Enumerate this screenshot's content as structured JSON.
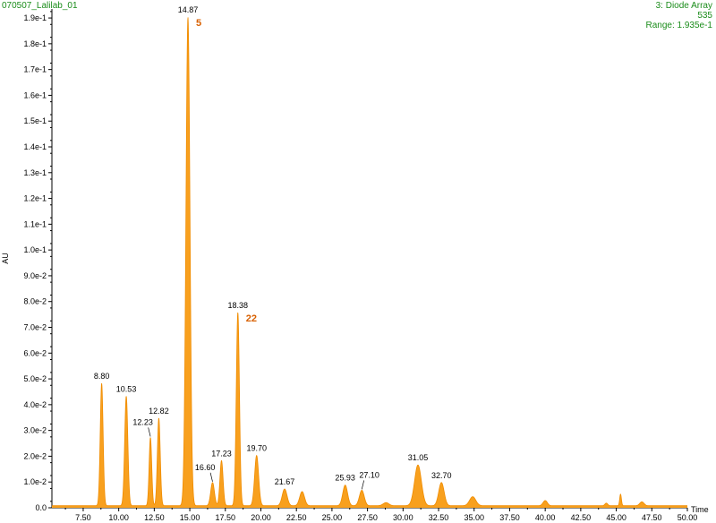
{
  "header": {
    "sample_name": "070507_Lalilab_01",
    "detector": "3: Diode Array",
    "wavelength": "535",
    "range": "Range: 1.935e-1"
  },
  "colors": {
    "trace": "#f8a01e",
    "trace_stroke": "#f08c00",
    "header_text": "#1a8c1a",
    "marker_label": "#d86000",
    "axis": "#000000"
  },
  "chart_data": {
    "type": "area",
    "xlabel": "Time",
    "ylabel": "AU",
    "xlim": [
      5.3,
      50.0
    ],
    "ylim": [
      0.0,
      0.1935
    ],
    "x_ticks": [
      7.5,
      10.0,
      12.5,
      15.0,
      17.5,
      20.0,
      22.5,
      25.0,
      27.5,
      30.0,
      32.5,
      35.0,
      37.5,
      40.0,
      42.5,
      45.0,
      47.5,
      50.0
    ],
    "x_tick_labels": [
      "7.50",
      "10.00",
      "12.50",
      "15.00",
      "17.50",
      "20.00",
      "22.50",
      "25.00",
      "27.50",
      "30.00",
      "32.50",
      "35.00",
      "37.50",
      "40.00",
      "42.50",
      "45.00",
      "47.50",
      "50.00"
    ],
    "y_ticks": [
      0.0,
      0.01,
      0.02,
      0.03,
      0.04,
      0.05,
      0.06,
      0.07,
      0.08,
      0.09,
      0.1,
      0.11,
      0.12,
      0.13,
      0.14,
      0.15,
      0.16,
      0.17,
      0.18,
      0.19
    ],
    "y_tick_labels": [
      "0.0",
      "1.0e-2",
      "2.0e-2",
      "3.0e-2",
      "4.0e-2",
      "5.0e-2",
      "6.0e-2",
      "7.0e-2",
      "8.0e-2",
      "9.0e-2",
      "1.0e-1",
      "1.1e-1",
      "1.2e-1",
      "1.3e-1",
      "1.4e-1",
      "1.5e-1",
      "1.6e-1",
      "1.7e-1",
      "1.8e-1",
      "1.9e-1"
    ],
    "baseline": 0.0008,
    "peaks": [
      {
        "rt": 8.8,
        "height": 0.0475,
        "width": 0.1,
        "label": "8.80"
      },
      {
        "rt": 10.53,
        "height": 0.0425,
        "width": 0.11,
        "label": "10.53"
      },
      {
        "rt": 12.23,
        "height": 0.0265,
        "width": 0.09,
        "label": "12.23"
      },
      {
        "rt": 12.82,
        "height": 0.034,
        "width": 0.1,
        "label": "12.82"
      },
      {
        "rt": 14.87,
        "height": 0.1895,
        "width": 0.14,
        "label": "14.87"
      },
      {
        "rt": 16.6,
        "height": 0.009,
        "width": 0.13,
        "label": "16.60"
      },
      {
        "rt": 17.23,
        "height": 0.0175,
        "width": 0.11,
        "label": "17.23"
      },
      {
        "rt": 18.38,
        "height": 0.075,
        "width": 0.11,
        "label": "18.38"
      },
      {
        "rt": 19.7,
        "height": 0.0195,
        "width": 0.14,
        "label": "19.70"
      },
      {
        "rt": 21.67,
        "height": 0.0065,
        "width": 0.17,
        "label": "21.67"
      },
      {
        "rt": 22.9,
        "height": 0.0055,
        "width": 0.17,
        "label": ""
      },
      {
        "rt": 25.93,
        "height": 0.008,
        "width": 0.17,
        "label": "25.93"
      },
      {
        "rt": 27.1,
        "height": 0.006,
        "width": 0.17,
        "label": "27.10"
      },
      {
        "rt": 28.8,
        "height": 0.0012,
        "width": 0.2,
        "label": ""
      },
      {
        "rt": 31.05,
        "height": 0.0158,
        "width": 0.24,
        "label": "31.05"
      },
      {
        "rt": 32.7,
        "height": 0.009,
        "width": 0.19,
        "label": "32.70"
      },
      {
        "rt": 34.9,
        "height": 0.0035,
        "width": 0.22,
        "label": ""
      },
      {
        "rt": 40.0,
        "height": 0.002,
        "width": 0.15,
        "label": ""
      },
      {
        "rt": 44.3,
        "height": 0.001,
        "width": 0.1,
        "label": ""
      },
      {
        "rt": 45.3,
        "height": 0.0045,
        "width": 0.06,
        "label": ""
      },
      {
        "rt": 46.8,
        "height": 0.0015,
        "width": 0.15,
        "label": ""
      }
    ],
    "annotations": [
      {
        "text": "5",
        "x": 14.87
      },
      {
        "text": "22",
        "x": 18.38
      }
    ]
  }
}
